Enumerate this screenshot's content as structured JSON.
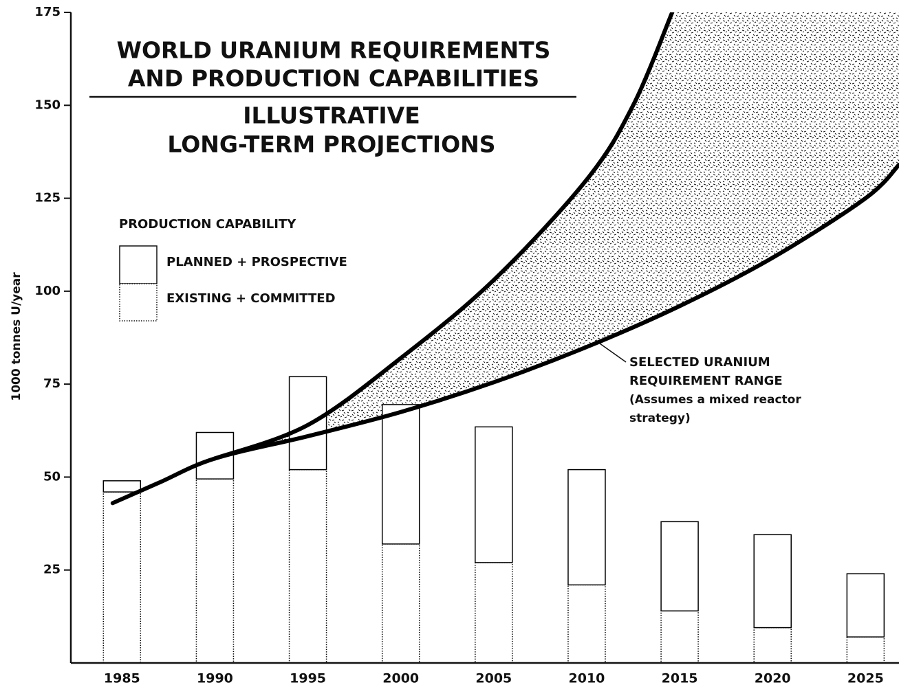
{
  "chart_data": {
    "type": "bar",
    "stacked": true,
    "title": [
      "WORLD URANIUM REQUIREMENTS",
      "AND PRODUCTION CAPABILITIES"
    ],
    "subtitle": [
      "ILLUSTRATIVE",
      "LONG-TERM PROJECTIONS"
    ],
    "y_label": "1000 tonnes U/year",
    "categories": [
      "1985",
      "1990",
      "1995",
      "2000",
      "2005",
      "2010",
      "2015",
      "2020",
      "2025"
    ],
    "legend_title": "PRODUCTION CAPABILITY",
    "series": [
      {
        "name": "EXISTING + COMMITTED",
        "color": "#000000",
        "values": [
          46,
          49.5,
          52,
          32,
          27,
          21,
          14,
          9.5,
          7
        ]
      },
      {
        "name": "PLANNED + PROSPECTIVE",
        "color": "#000000",
        "values": [
          3,
          12.5,
          25,
          37.5,
          36.5,
          31,
          24,
          25,
          17
        ]
      }
    ],
    "requirement_range": {
      "lower": {
        "x": [
          1984.5,
          1987,
          1990,
          1995,
          2000,
          2005,
          2010,
          2015,
          2020,
          2025,
          2026.8
        ],
        "values": [
          43,
          48.5,
          55,
          61,
          67.5,
          75.5,
          85,
          96,
          109,
          125,
          134
        ]
      },
      "upper": {
        "x": [
          1990,
          1995,
          2000,
          2005,
          2010,
          2012.5,
          2014.6
        ],
        "values": [
          55,
          64,
          82,
          103,
          130,
          150,
          175
        ]
      }
    },
    "annotation": [
      "SELECTED URANIUM",
      "REQUIREMENT RANGE",
      "(Assumes a mixed reactor",
      "strategy)"
    ],
    "xlim": [
      1982.25,
      2026.8
    ],
    "ylim": [
      0,
      175
    ],
    "yticks": [
      25,
      50,
      75,
      100,
      125,
      150,
      175
    ]
  }
}
